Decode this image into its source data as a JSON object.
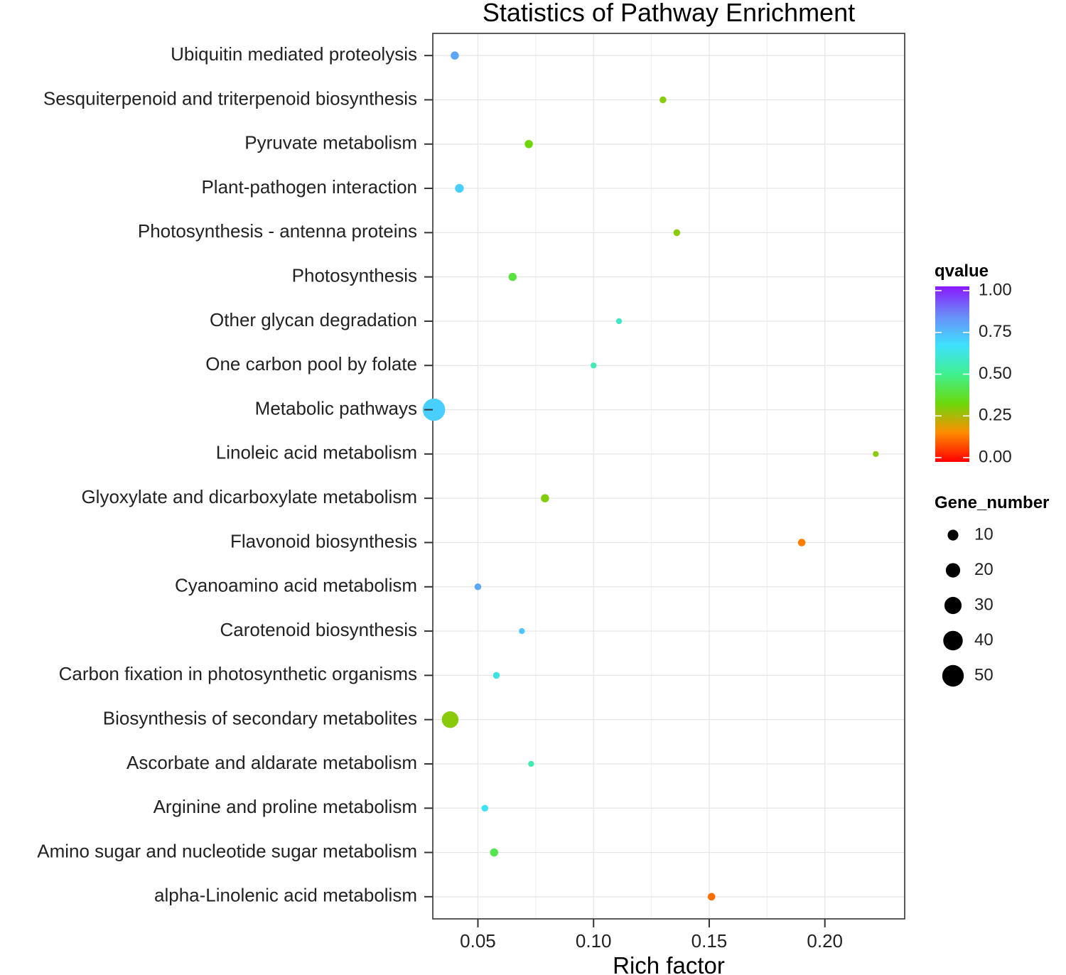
{
  "chart_data": {
    "type": "scatter",
    "title": "Statistics of Pathway Enrichment",
    "xlabel": "Rich factor",
    "ylabel": "",
    "xlim": [
      0.0305,
      0.2345
    ],
    "xticks": [
      0.05,
      0.1,
      0.15,
      0.2
    ],
    "xtick_labels": [
      "0.05",
      "0.10",
      "0.15",
      "0.20"
    ],
    "grid": true,
    "categories": [
      "Ubiquitin mediated proteolysis",
      "Sesquiterpenoid and triterpenoid biosynthesis",
      "Pyruvate metabolism",
      "Plant-pathogen interaction",
      "Photosynthesis - antenna proteins",
      "Photosynthesis",
      "Other glycan degradation",
      "One carbon pool by folate",
      "Metabolic pathways",
      "Linoleic acid metabolism",
      "Glyoxylate and dicarboxylate metabolism",
      "Flavonoid biosynthesis",
      "Cyanoamino acid metabolism",
      "Carotenoid biosynthesis",
      "Carbon fixation in photosynthetic organisms",
      "Biosynthesis of secondary metabolites",
      "Ascorbate and aldarate metabolism",
      "Arginine and proline metabolism",
      "Amino sugar and nucleotide sugar metabolism",
      "alpha-Linolenic acid metabolism"
    ],
    "points": [
      {
        "pathway": "Ubiquitin mediated proteolysis",
        "rich_factor": 0.04,
        "qvalue": 0.78,
        "gene_number": 5
      },
      {
        "pathway": "Sesquiterpenoid and triterpenoid biosynthesis",
        "rich_factor": 0.13,
        "qvalue": 0.3,
        "gene_number": 3
      },
      {
        "pathway": "Pyruvate metabolism",
        "rich_factor": 0.072,
        "qvalue": 0.33,
        "gene_number": 5
      },
      {
        "pathway": "Plant-pathogen interaction",
        "rich_factor": 0.042,
        "qvalue": 0.7,
        "gene_number": 6
      },
      {
        "pathway": "Photosynthesis - antenna proteins",
        "rich_factor": 0.136,
        "qvalue": 0.3,
        "gene_number": 3
      },
      {
        "pathway": "Photosynthesis",
        "rich_factor": 0.065,
        "qvalue": 0.4,
        "gene_number": 5
      },
      {
        "pathway": "Other glycan degradation",
        "rich_factor": 0.111,
        "qvalue": 0.58,
        "gene_number": 2
      },
      {
        "pathway": "One carbon pool by folate",
        "rich_factor": 0.1,
        "qvalue": 0.56,
        "gene_number": 2
      },
      {
        "pathway": "Metabolic pathways",
        "rich_factor": 0.031,
        "qvalue": 0.7,
        "gene_number": 54
      },
      {
        "pathway": "Linoleic acid metabolism",
        "rich_factor": 0.222,
        "qvalue": 0.3,
        "gene_number": 2
      },
      {
        "pathway": "Glyoxylate and dicarboxylate metabolism",
        "rich_factor": 0.079,
        "qvalue": 0.31,
        "gene_number": 5
      },
      {
        "pathway": "Flavonoid biosynthesis",
        "rich_factor": 0.19,
        "qvalue": 0.15,
        "gene_number": 4
      },
      {
        "pathway": "Cyanoamino acid metabolism",
        "rich_factor": 0.05,
        "qvalue": 0.78,
        "gene_number": 3
      },
      {
        "pathway": "Carotenoid biosynthesis",
        "rich_factor": 0.069,
        "qvalue": 0.72,
        "gene_number": 2
      },
      {
        "pathway": "Carbon fixation in photosynthetic organisms",
        "rich_factor": 0.058,
        "qvalue": 0.62,
        "gene_number": 3
      },
      {
        "pathway": "Biosynthesis of secondary metabolites",
        "rich_factor": 0.038,
        "qvalue": 0.3,
        "gene_number": 28
      },
      {
        "pathway": "Ascorbate and aldarate metabolism",
        "rich_factor": 0.073,
        "qvalue": 0.55,
        "gene_number": 2
      },
      {
        "pathway": "Arginine and proline metabolism",
        "rich_factor": 0.053,
        "qvalue": 0.65,
        "gene_number": 3
      },
      {
        "pathway": "Amino sugar and nucleotide sugar metabolism",
        "rich_factor": 0.057,
        "qvalue": 0.42,
        "gene_number": 5
      },
      {
        "pathway": "alpha-Linolenic acid metabolism",
        "rich_factor": 0.151,
        "qvalue": 0.13,
        "gene_number": 4
      }
    ],
    "color_legend": {
      "title": "qvalue",
      "range": [
        0,
        1
      ],
      "ticks": [
        1.0,
        0.75,
        0.5,
        0.25,
        0.0
      ],
      "tick_labels": [
        "1.00",
        "0.75",
        "0.50",
        "0.25",
        "0.00"
      ],
      "gradient": [
        "#ff0000",
        "#ff8c00",
        "#6bd90b",
        "#3ff08f",
        "#3fe0ff",
        "#6a8cf7",
        "#8a19ff"
      ]
    },
    "size_legend": {
      "title": "Gene_number",
      "values": [
        10,
        20,
        30,
        40,
        50
      ],
      "labels": [
        "10",
        "20",
        "30",
        "40",
        "50"
      ],
      "color": "#000000"
    }
  }
}
